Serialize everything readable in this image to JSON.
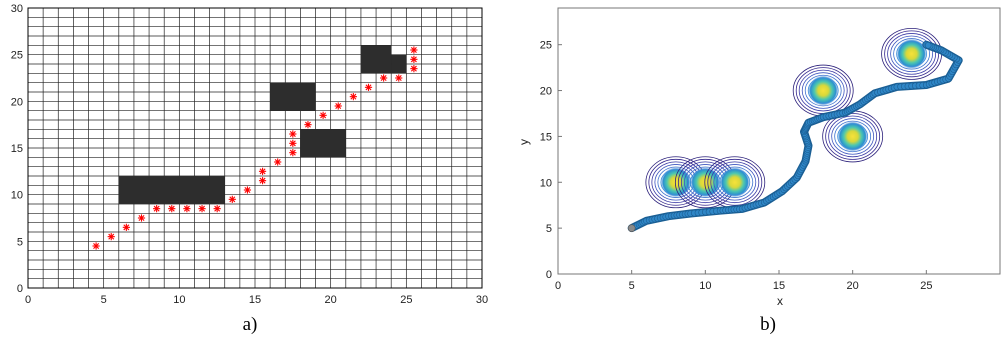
{
  "panel_a": {
    "caption": "a)",
    "chart_data": {
      "type": "scatter",
      "title": "",
      "xlabel": "",
      "ylabel": "",
      "xlim": [
        0,
        30
      ],
      "ylim": [
        0,
        30
      ],
      "xticks": [
        "0",
        "5",
        "10",
        "15",
        "20",
        "25",
        "30"
      ],
      "yticks": [
        "0",
        "5",
        "10",
        "15",
        "20",
        "25",
        "30"
      ],
      "grid": "on, 1-unit cells",
      "obstacles": [
        {
          "x0": 6,
          "x1": 13,
          "y0": 9,
          "y1": 12
        },
        {
          "x0": 18,
          "x1": 21,
          "y0": 14,
          "y1": 17
        },
        {
          "x0": 16,
          "x1": 19,
          "y0": 19,
          "y1": 22
        },
        {
          "x0": 22,
          "x1": 24,
          "y0": 23,
          "y1": 26
        },
        {
          "x0": 24,
          "x1": 25,
          "y0": 23,
          "y1": 25
        }
      ],
      "obstacle_color": "#2d2d2d",
      "path_color": "#ff0000",
      "path_marker": "*",
      "path_points": [
        [
          4.5,
          4.5
        ],
        [
          5.5,
          5.5
        ],
        [
          6.5,
          6.5
        ],
        [
          7.5,
          7.5
        ],
        [
          8.5,
          8.5
        ],
        [
          9.5,
          8.5
        ],
        [
          10.5,
          8.5
        ],
        [
          11.5,
          8.5
        ],
        [
          12.5,
          8.5
        ],
        [
          13.5,
          9.5
        ],
        [
          14.5,
          10.5
        ],
        [
          15.5,
          11.5
        ],
        [
          15.5,
          12.5
        ],
        [
          16.5,
          13.5
        ],
        [
          17.5,
          14.5
        ],
        [
          17.5,
          15.5
        ],
        [
          17.5,
          16.5
        ],
        [
          18.5,
          17.5
        ],
        [
          19.5,
          18.5
        ],
        [
          20.5,
          19.5
        ],
        [
          21.5,
          20.5
        ],
        [
          22.5,
          21.5
        ],
        [
          23.5,
          22.5
        ],
        [
          24.5,
          22.5
        ],
        [
          25.5,
          23.5
        ],
        [
          25.5,
          24.5
        ],
        [
          25.5,
          25.5
        ]
      ]
    }
  },
  "panel_b": {
    "caption": "b)",
    "chart_data": {
      "type": "line",
      "title": "",
      "xlabel": "x",
      "ylabel": "y",
      "xlim": [
        0,
        30
      ],
      "ylim": [
        0,
        29
      ],
      "xticks": [
        "0",
        "5",
        "10",
        "15",
        "20",
        "25"
      ],
      "yticks": [
        "0",
        "5",
        "10",
        "15",
        "20",
        "25"
      ],
      "grid": "off",
      "contour_centers": [
        [
          8,
          10
        ],
        [
          10,
          10
        ],
        [
          12,
          10
        ],
        [
          18,
          20
        ],
        [
          20,
          15
        ],
        [
          24,
          24
        ]
      ],
      "path_color": "#2b7ab8",
      "start_point": [
        5,
        5
      ],
      "path_points": [
        [
          5,
          5
        ],
        [
          6,
          5.8
        ],
        [
          7.5,
          6.3
        ],
        [
          9,
          6.6
        ],
        [
          11,
          6.9
        ],
        [
          12.5,
          7.1
        ],
        [
          14,
          7.8
        ],
        [
          15.2,
          9
        ],
        [
          16.2,
          10.5
        ],
        [
          16.8,
          12.3
        ],
        [
          17,
          14
        ],
        [
          16.7,
          15.5
        ],
        [
          17,
          16.5
        ],
        [
          18,
          17.1
        ],
        [
          19.5,
          17.6
        ],
        [
          20.5,
          18.5
        ],
        [
          21.5,
          19.7
        ],
        [
          23,
          20.4
        ],
        [
          25,
          20.6
        ],
        [
          26.5,
          21.3
        ],
        [
          27.2,
          23.3
        ],
        [
          26,
          24.4
        ],
        [
          25,
          25
        ]
      ]
    }
  }
}
